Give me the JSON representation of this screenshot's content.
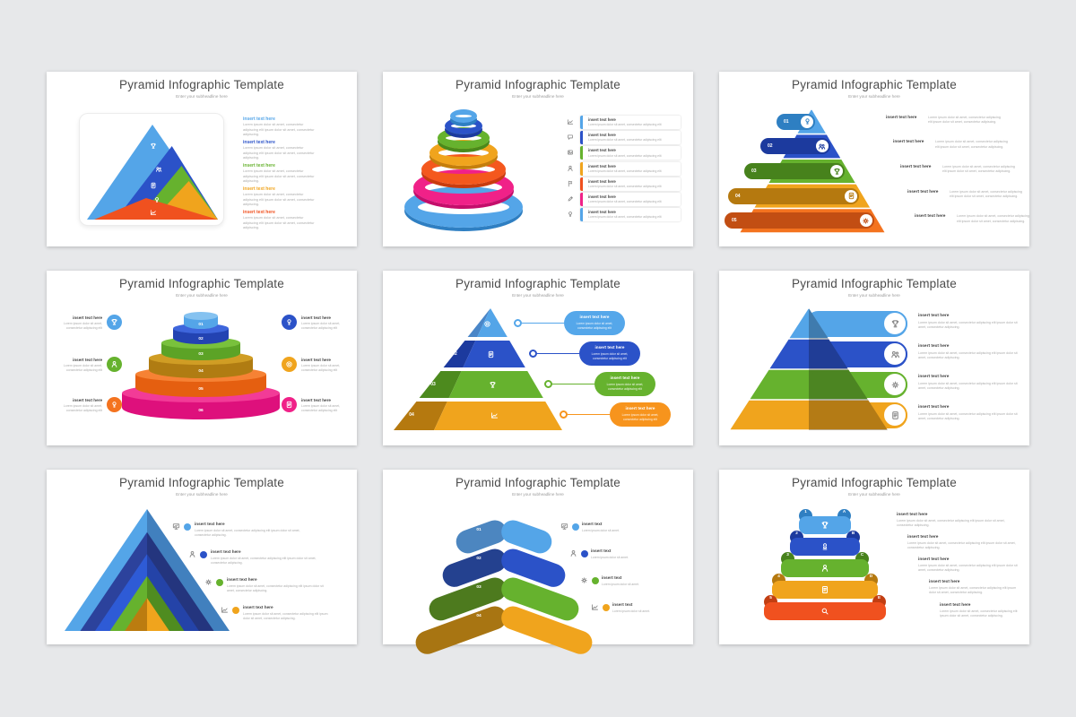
{
  "page": {
    "background": "#e7e8ea"
  },
  "common": {
    "title": "Pyramid Infographic Template",
    "subtitle": "Enter your subheadline here",
    "colors": {
      "light_blue": "#54A5E8",
      "royal_blue": "#2B52C8",
      "navy": "#24418F",
      "green": "#66B22E",
      "dark_green": "#4D7A1E",
      "amber": "#F0A41D",
      "dark_amber": "#B5790F",
      "orange": "#F4731F",
      "red_orange": "#F0511F",
      "pink": "#F02188",
      "text_dark": "#3F3F3F",
      "text_gray": "#ABABAB"
    }
  },
  "slides": [
    {
      "layout": "overlapping-triangles-card",
      "layers": [
        {
          "color": "#54A5E8",
          "icon": "trophy-icon"
        },
        {
          "color": "#2B52C8",
          "icon": "users-icon"
        },
        {
          "color": "#66B22E",
          "icon": "document-icon"
        },
        {
          "color": "#F0A41D",
          "icon": "bulb-icon"
        },
        {
          "color": "#F0511F",
          "icon": "chart-icon"
        }
      ],
      "items": [
        {
          "label": "insert text here",
          "color": "#54A5E8",
          "desc": "Lorem ipsum dolor sit amet, consectetur adipiscing elit ipsum dolor sit amet, consectetur adipiscing."
        },
        {
          "label": "insert text here",
          "color": "#2B52C8",
          "desc": "Lorem ipsum dolor sit amet, consectetur adipiscing elit ipsum dolor sit amet, consectetur adipiscing."
        },
        {
          "label": "insert text here",
          "color": "#66B22E",
          "desc": "Lorem ipsum dolor sit amet, consectetur adipiscing elit ipsum dolor sit amet, consectetur adipiscing."
        },
        {
          "label": "insert text here",
          "color": "#F0A41D",
          "desc": "Lorem ipsum dolor sit amet, consectetur adipiscing elit ipsum dolor sit amet, consectetur adipiscing."
        },
        {
          "label": "insert text here",
          "color": "#F0511F",
          "desc": "Lorem ipsum dolor sit amet, consectetur adipiscing elit ipsum dolor sit amet, consectetur adipiscing."
        }
      ]
    },
    {
      "layout": "3d-rings-stack",
      "rings": [
        {
          "color": "#54A5E8",
          "dark": "#2F7FC2"
        },
        {
          "color": "#F02188",
          "dark": "#C40E6B"
        },
        {
          "color": "#F4581E",
          "dark": "#C93C0F"
        },
        {
          "color": "#F0A41D",
          "dark": "#C47F0C"
        },
        {
          "color": "#66B22E",
          "dark": "#4A8A1C"
        },
        {
          "color": "#2B52C8",
          "dark": "#1C3A9E"
        },
        {
          "color": "#54A5E8",
          "dark": "#2F7FC2"
        }
      ],
      "rows": [
        {
          "icon": "chart-icon",
          "bar": "#54A5E8",
          "label": "insert text here",
          "desc": "Lorem ipsum dolor sit amet, consectetur adipiscing elit"
        },
        {
          "icon": "chat-icon",
          "bar": "#2B52C8",
          "label": "insert text here",
          "desc": "Lorem ipsum dolor sit amet, consectetur adipiscing elit"
        },
        {
          "icon": "image-icon",
          "bar": "#66B22E",
          "label": "insert text here",
          "desc": "Lorem ipsum dolor sit amet, consectetur adipiscing elit"
        },
        {
          "icon": "person-icon",
          "bar": "#F0A41D",
          "label": "insert text here",
          "desc": "Lorem ipsum dolor sit amet, consectetur adipiscing elit"
        },
        {
          "icon": "flag-icon",
          "bar": "#F0511F",
          "label": "insert text here",
          "desc": "Lorem ipsum dolor sit amet, consectetur adipiscing elit"
        },
        {
          "icon": "pencil-icon",
          "bar": "#F02188",
          "label": "insert text here",
          "desc": "Lorem ipsum dolor sit amet, consectetur adipiscing elit"
        },
        {
          "icon": "bulb-icon",
          "bar": "#54A5E8",
          "label": "insert text here",
          "desc": "Lorem ipsum dolor sit amet, consectetur adipiscing elit"
        }
      ]
    },
    {
      "layout": "banded-pyramid-left-pills",
      "bands": [
        {
          "color": "#54A5E8",
          "pill": "#2E7FC2",
          "num": "01",
          "icon": "bulb-icon"
        },
        {
          "color": "#2B52C8",
          "pill": "#1C3A9E",
          "num": "02",
          "icon": "users-icon"
        },
        {
          "color": "#66B22E",
          "pill": "#47821C",
          "num": "03",
          "icon": "trophy-icon"
        },
        {
          "color": "#F0A41D",
          "pill": "#B5790F",
          "num": "04",
          "icon": "document-icon"
        },
        {
          "color": "#F4731F",
          "pill": "#C24E13",
          "num": "05",
          "icon": "gear-icon"
        }
      ],
      "items": [
        {
          "label": "insert text here",
          "desc": "Lorem ipsum dolor sit amet, consectetur adipiscing elit ipsum dolor sit amet, consectetur adipiscing."
        },
        {
          "label": "insert text here",
          "desc": "Lorem ipsum dolor sit amet, consectetur adipiscing elit ipsum dolor sit amet, consectetur adipiscing."
        },
        {
          "label": "insert text here",
          "desc": "Lorem ipsum dolor sit amet, consectetur adipiscing elit ipsum dolor sit amet, consectetur adipiscing."
        },
        {
          "label": "insert text here",
          "desc": "Lorem ipsum dolor sit amet, consectetur adipiscing elit ipsum dolor sit amet, consectetur adipiscing."
        },
        {
          "label": "insert text here",
          "desc": "Lorem ipsum dolor sit amet, consectetur adipiscing elit ipsum dolor sit amet, consectetur adipiscing."
        }
      ]
    },
    {
      "layout": "3d-cake-pyramid",
      "tiers": [
        {
          "top": "#85C2F0",
          "side": "#54A5E8",
          "num": "01"
        },
        {
          "top": "#3E66DC",
          "side": "#2343B2",
          "num": "02"
        },
        {
          "top": "#79C13C",
          "side": "#5CA326",
          "num": "03"
        },
        {
          "top": "#D09D24",
          "side": "#B07C12",
          "num": "04"
        },
        {
          "top": "#F68234",
          "side": "#E55F10",
          "num": "05"
        },
        {
          "top": "#F23B97",
          "side": "#DE107C",
          "num": "06"
        }
      ],
      "left_items": [
        {
          "circle": "#54A5E8",
          "icon": "trophy-icon",
          "label": "insert text here",
          "desc": "Lorem ipsum dolor sit amet, consectetur adipiscing elit"
        },
        {
          "circle": "#66B22E",
          "icon": "person-icon",
          "label": "insert text here",
          "desc": "Lorem ipsum dolor sit amet, consectetur adipiscing elit"
        },
        {
          "circle": "#F4731F",
          "icon": "bulb-icon",
          "label": "insert text here",
          "desc": "Lorem ipsum dolor sit amet, consectetur adipiscing elit"
        }
      ],
      "right_items": [
        {
          "circle": "#2B52C8",
          "icon": "bulb-icon",
          "label": "insert text here",
          "desc": "Lorem ipsum dolor sit amet, consectetur adipiscing elit"
        },
        {
          "circle": "#F0A41D",
          "icon": "target-icon",
          "label": "insert text here",
          "desc": "Lorem ipsum dolor sit amet, consectetur adipiscing elit"
        },
        {
          "circle": "#F02188",
          "icon": "document-icon",
          "label": "insert text here",
          "desc": "Lorem ipsum dolor sit amet, consectetur adipiscing elit"
        }
      ]
    },
    {
      "layout": "3d-skewed-pyramid-callouts",
      "layers": [
        {
          "side": "#4A86C8",
          "front": "#54A5E8",
          "num": "01",
          "icon": "target-icon"
        },
        {
          "side": "#1C3A9E",
          "front": "#2B52C8",
          "num": "02",
          "icon": "document-icon"
        },
        {
          "side": "#4D8A1E",
          "front": "#66B22E",
          "num": "03",
          "icon": "trophy-icon"
        },
        {
          "side": "#B5790F",
          "front": "#F0A41D",
          "num": "04",
          "icon": "chart-icon"
        }
      ],
      "callouts": [
        {
          "color": "#55A7EA",
          "label": "insert text here",
          "desc": "Lorem ipsum dolor sit amet, consectetur adipiscing elit"
        },
        {
          "color": "#2B52C8",
          "label": "insert text here",
          "desc": "Lorem ipsum dolor sit amet, consectetur adipiscing elit"
        },
        {
          "color": "#66B22E",
          "label": "insert text here",
          "desc": "Lorem ipsum dolor sit amet, consectetur adipiscing elit"
        },
        {
          "color": "#F7941D",
          "label": "insert text here",
          "desc": "Lorem ipsum dolor sit amet, consectetur adipiscing elit"
        }
      ]
    },
    {
      "layout": "pyramid-right-pills",
      "bands": [
        {
          "color": "#54A5E8",
          "icon": "trophy-icon"
        },
        {
          "color": "#2B52C8",
          "icon": "users-icon"
        },
        {
          "color": "#66B22E",
          "icon": "gear-icon"
        },
        {
          "color": "#F0A41D",
          "icon": "document-icon"
        }
      ],
      "items": [
        {
          "label": "insert text here",
          "desc": "Lorem ipsum dolor sit amet, consectetur adipiscing elit ipsum dolor sit amet, consectetur adipiscing."
        },
        {
          "label": "insert text here",
          "desc": "Lorem ipsum dolor sit amet, consectetur adipiscing elit ipsum dolor sit amet, consectetur adipiscing."
        },
        {
          "label": "insert text here",
          "desc": "Lorem ipsum dolor sit amet, consectetur adipiscing elit ipsum dolor sit amet, consectetur adipiscing."
        },
        {
          "label": "insert text here",
          "desc": "Lorem ipsum dolor sit amet, consectetur adipiscing elit ipsum dolor sit amet, consectetur adipiscing."
        }
      ]
    },
    {
      "layout": "nested-triangles",
      "tris": [
        {
          "left": "#54A5E8",
          "right": "#4180BE"
        },
        {
          "left": "#2C429C",
          "right": "#24357E"
        },
        {
          "left": "#2E5BD6",
          "right": "#2443A8"
        },
        {
          "left": "#66B22E",
          "right": "#4F8C20"
        },
        {
          "left": "#BB7C10",
          "right": "#F0A41D"
        }
      ],
      "items": [
        {
          "icon": "screen-icon",
          "dot": "#54A5E8",
          "label": "insert text here",
          "desc": "Lorem ipsum dolor sit amet, consectetur adipiscing elit ipsum dolor sit amet, consectetur adipiscing."
        },
        {
          "icon": "person-icon",
          "dot": "#2B52C8",
          "label": "insert text here",
          "desc": "Lorem ipsum dolor sit amet, consectetur adipiscing elit ipsum dolor sit amet, consectetur adipiscing."
        },
        {
          "icon": "gear-icon",
          "dot": "#66B22E",
          "label": "insert text here",
          "desc": "Lorem ipsum dolor sit amet, consectetur adipiscing elit ipsum dolor sit amet, consectetur adipiscing."
        },
        {
          "icon": "chart-icon",
          "dot": "#F0A41D",
          "label": "insert text here",
          "desc": "Lorem ipsum dolor sit amet, consectetur adipiscing elit ipsum dolor sit amet, consectetur adipiscing."
        }
      ]
    },
    {
      "layout": "chevron-leaf-stack",
      "layers": [
        {
          "left": "#4C86C0",
          "right": "#54A5E8",
          "num": "01"
        },
        {
          "left": "#24418F",
          "right": "#2B52C8",
          "num": "02"
        },
        {
          "left": "#4D7A1E",
          "right": "#66B22E",
          "num": "03"
        },
        {
          "left": "#A87512",
          "right": "#F0A41D",
          "num": "04"
        }
      ],
      "items": [
        {
          "icon": "screen-icon",
          "dot": "#54A5E8",
          "label": "insert text",
          "desc": "Lorem ipsum dolor sit amet."
        },
        {
          "icon": "person-icon",
          "dot": "#2B52C8",
          "label": "insert text",
          "desc": "Lorem ipsum dolor sit amet."
        },
        {
          "icon": "gear-icon",
          "dot": "#66B22E",
          "label": "insert text",
          "desc": "Lorem ipsum dolor sit amet."
        },
        {
          "icon": "chart-icon",
          "dot": "#F0A41D",
          "label": "insert text",
          "desc": "Lorem ipsum dolor sit amet."
        }
      ]
    },
    {
      "layout": "rounded-bar-stack",
      "bars": [
        {
          "color": "#54A5E8",
          "ear": "#2F7FC2",
          "num": "1",
          "letter": "A",
          "icon": "trophy-icon"
        },
        {
          "color": "#2B52C8",
          "ear": "#1C3A9E",
          "num": "2",
          "letter": "B",
          "icon": "chess-icon"
        },
        {
          "color": "#66B22E",
          "ear": "#47821C",
          "num": "3",
          "letter": "C",
          "icon": "person-icon"
        },
        {
          "color": "#F0A41D",
          "ear": "#B5790F",
          "num": "4",
          "letter": "D",
          "icon": "document-icon"
        },
        {
          "color": "#F0511F",
          "ear": "#C23E12",
          "num": "5",
          "letter": "E",
          "icon": "search-icon"
        }
      ],
      "items": [
        {
          "label": "insert text here",
          "desc": "Lorem ipsum dolor sit amet, consectetur adipiscing elit ipsum dolor sit amet, consectetur adipiscing."
        },
        {
          "label": "insert text here",
          "desc": "Lorem ipsum dolor sit amet, consectetur adipiscing elit ipsum dolor sit amet, consectetur adipiscing."
        },
        {
          "label": "insert text here",
          "desc": "Lorem ipsum dolor sit amet, consectetur adipiscing elit ipsum dolor sit amet, consectetur adipiscing."
        },
        {
          "label": "insert text here",
          "desc": "Lorem ipsum dolor sit amet, consectetur adipiscing elit ipsum dolor sit amet, consectetur adipiscing."
        },
        {
          "label": "insert text here",
          "desc": "Lorem ipsum dolor sit amet, consectetur adipiscing elit ipsum dolor sit amet, consectetur adipiscing."
        }
      ]
    }
  ]
}
